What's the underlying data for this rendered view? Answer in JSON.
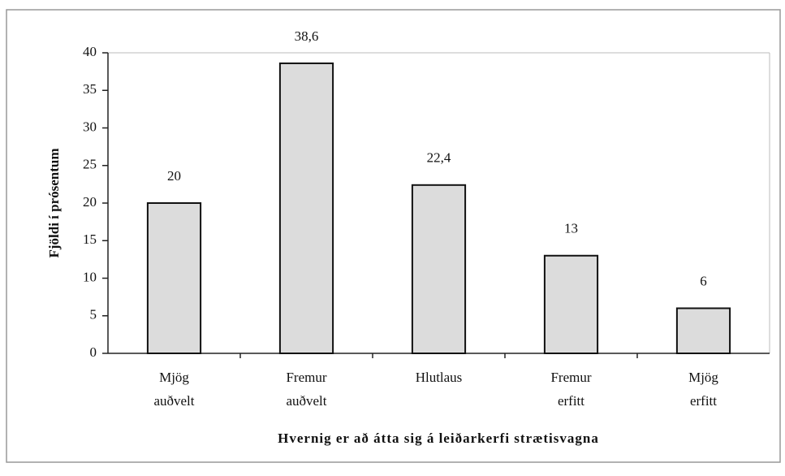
{
  "chart_data": {
    "type": "bar",
    "categories": [
      [
        "Mjög",
        "auðvelt"
      ],
      [
        "Fremur",
        "auðvelt"
      ],
      [
        "Hlutlaus"
      ],
      [
        "Fremur",
        "erfitt"
      ],
      [
        "Mjög",
        "erfitt"
      ]
    ],
    "values": [
      20,
      38.6,
      22.4,
      13,
      6
    ],
    "value_labels": [
      "20",
      "38,6",
      "22,4",
      "13",
      "6"
    ],
    "color": "#dcdcdc",
    "ylim": [
      0,
      40
    ],
    "yticks": [
      0,
      5,
      10,
      15,
      20,
      25,
      30,
      35,
      40
    ],
    "grid": false,
    "y_label": "Fjöldi í prósentum",
    "x_label": "Hvernig er að átta sig á leiðarkerfi strætisvagna"
  }
}
